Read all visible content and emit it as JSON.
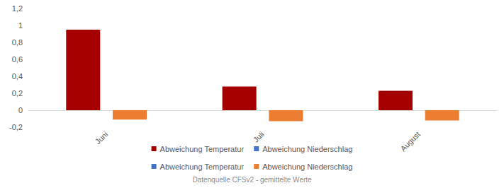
{
  "chart_data": {
    "type": "bar",
    "categories": [
      "Juni",
      "Juli",
      "August"
    ],
    "series": [
      {
        "name": "Abweichung Temperatur",
        "color": "#a50000",
        "values": [
          0.95,
          0.28,
          0.23
        ]
      },
      {
        "name": "Abweichung Niederschlag",
        "color": "#4472c4",
        "values": [
          null,
          null,
          null
        ]
      },
      {
        "name": "Abweichung Temperatur",
        "color": "#4472c4",
        "values": [
          null,
          null,
          null
        ]
      },
      {
        "name": "Abweichung Niederschlag",
        "color": "#ed7d31",
        "values": [
          -0.11,
          -0.13,
          -0.12
        ]
      }
    ],
    "ylim": [
      -0.2,
      1.2
    ],
    "yticks": [
      {
        "value": -0.2,
        "label": "-0,2"
      },
      0,
      {
        "value": 0.2,
        "label": "0,2"
      },
      {
        "value": 0.4,
        "label": "0,4"
      },
      {
        "value": 0.6,
        "label": "0,6"
      },
      {
        "value": 0.8,
        "label": "0,8"
      },
      1,
      {
        "value": 1.2,
        "label": "1,2"
      }
    ],
    "grid": false,
    "legend": "bottom",
    "source": "Datenquelle CFSv2 - gemittelte Werte"
  }
}
